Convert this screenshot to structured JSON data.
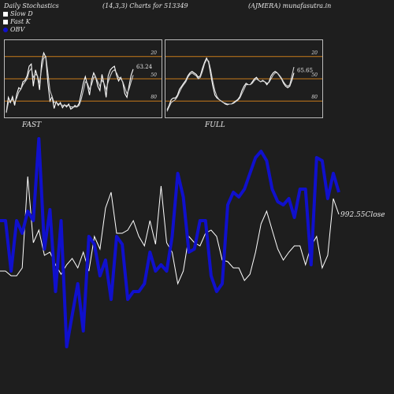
{
  "header": {
    "left": "Daily Stochastics",
    "middle": "(14,3,3) Charts for 513349",
    "right": "(AJMERA) munafasutra.in"
  },
  "legend": [
    {
      "label": "Slow  D",
      "color": "#ffffff"
    },
    {
      "label": "Fast K",
      "color": "#ffffff"
    },
    {
      "label": "OBV",
      "color": "#1010cc"
    }
  ],
  "colors": {
    "background": "#1e1e1e",
    "level_line": "#c87a1a",
    "obv": "#1010cc",
    "price": "#ffffff"
  },
  "chart_data": [
    {
      "type": "line",
      "panel_label": "FAST",
      "ylim": [
        0,
        100
      ],
      "levels": [
        20,
        50,
        80
      ],
      "tick_labels": [
        "80",
        "50",
        "20"
      ],
      "last_value_label": "63.24",
      "x": [
        1,
        2,
        3,
        4,
        5,
        6,
        7,
        8,
        9,
        10,
        11,
        12,
        13,
        14,
        15,
        16,
        17,
        18,
        19,
        20,
        21,
        22,
        23,
        24,
        25,
        26,
        27,
        28,
        29,
        30,
        31,
        32,
        33,
        34,
        35,
        36,
        37,
        38,
        39,
        40,
        41,
        42,
        43,
        44,
        45,
        46,
        47,
        48,
        49,
        50,
        51,
        52,
        53,
        54,
        55,
        56,
        57,
        58,
        59,
        60,
        61,
        62
      ],
      "series": [
        {
          "values": [
            5,
            25,
            18,
            26,
            14,
            29,
            38,
            36,
            46,
            48,
            54,
            67,
            70,
            40,
            62,
            53,
            35,
            73,
            85,
            79,
            44,
            20,
            26,
            10,
            19,
            14,
            18,
            11,
            15,
            12,
            16,
            9,
            11,
            14,
            12,
            17,
            30,
            44,
            53,
            42,
            28,
            48,
            58,
            52,
            40,
            34,
            56,
            43,
            25,
            54,
            62,
            65,
            67,
            55,
            47,
            52,
            45,
            30,
            25,
            40,
            55,
            63
          ]
        },
        {
          "values": [
            4,
            18,
            20,
            22,
            18,
            24,
            32,
            36,
            42,
            46,
            50,
            60,
            64,
            52,
            56,
            54,
            44,
            64,
            78,
            80,
            58,
            34,
            26,
            18,
            18,
            16,
            16,
            14,
            14,
            14,
            14,
            12,
            12,
            12,
            12,
            14,
            22,
            34,
            46,
            44,
            36,
            42,
            52,
            52,
            46,
            40,
            48,
            44,
            36,
            46,
            54,
            60,
            62,
            58,
            52,
            50,
            46,
            38,
            30,
            36,
            46,
            55
          ]
        }
      ]
    },
    {
      "type": "line",
      "panel_label": "FULL",
      "ylim": [
        0,
        100
      ],
      "levels": [
        20,
        50,
        80
      ],
      "tick_labels": [
        "80",
        "50",
        "20"
      ],
      "last_value_label": "65.65",
      "x": [
        1,
        2,
        3,
        4,
        5,
        6,
        7,
        8,
        9,
        10,
        11,
        12,
        13,
        14,
        15,
        16,
        17,
        18,
        19,
        20,
        21,
        22,
        23,
        24,
        25,
        26,
        27,
        28,
        29,
        30,
        31,
        32,
        33,
        34,
        35,
        36,
        37,
        38,
        39,
        40,
        41,
        42,
        43,
        44,
        45,
        46,
        47,
        48,
        49,
        50,
        51,
        52,
        53,
        54,
        55,
        56,
        57,
        58,
        59,
        60,
        61,
        62
      ],
      "series": [
        {
          "values": [
            8,
            14,
            22,
            24,
            24,
            28,
            36,
            40,
            44,
            48,
            54,
            58,
            60,
            58,
            56,
            52,
            54,
            64,
            72,
            78,
            72,
            56,
            40,
            28,
            24,
            22,
            20,
            18,
            16,
            15,
            16,
            16,
            18,
            20,
            22,
            26,
            34,
            40,
            44,
            42,
            42,
            46,
            50,
            52,
            48,
            46,
            48,
            46,
            42,
            46,
            54,
            58,
            60,
            58,
            54,
            50,
            44,
            40,
            38,
            40,
            48,
            58
          ]
        },
        {
          "values": [
            6,
            12,
            18,
            20,
            22,
            26,
            32,
            38,
            42,
            46,
            52,
            56,
            58,
            56,
            54,
            50,
            52,
            60,
            70,
            76,
            74,
            62,
            46,
            34,
            26,
            22,
            20,
            18,
            17,
            16,
            16,
            16,
            17,
            19,
            21,
            24,
            30,
            36,
            42,
            42,
            42,
            44,
            48,
            50,
            48,
            46,
            47,
            46,
            44,
            45,
            50,
            55,
            58,
            58,
            55,
            51,
            46,
            42,
            40,
            42,
            54,
            66
          ]
        }
      ]
    },
    {
      "type": "line",
      "panel_label": "",
      "last_value_label": "992.55",
      "last_value_suffix": "Close",
      "x": [
        1,
        2,
        3,
        4,
        5,
        6,
        7,
        8,
        9,
        10,
        11,
        12,
        13,
        14,
        15,
        16,
        17,
        18,
        19,
        20,
        21,
        22,
        23,
        24,
        25,
        26,
        27,
        28,
        29,
        30,
        31,
        32,
        33,
        34,
        35,
        36,
        37,
        38,
        39,
        40,
        41,
        42,
        43,
        44,
        45,
        46,
        47,
        48,
        49,
        50,
        51,
        52,
        53,
        54,
        55,
        56,
        57,
        58,
        59,
        60,
        61,
        62
      ],
      "series": [
        {
          "name": "OBV",
          "values": [
            90,
            90,
            58,
            90,
            82,
            96,
            90,
            142,
            72,
            97,
            45,
            90,
            10,
            30,
            50,
            20,
            80,
            75,
            55,
            65,
            40,
            80,
            75,
            40,
            45,
            45,
            50,
            70,
            58,
            62,
            58,
            80,
            120,
            105,
            70,
            72,
            90,
            90,
            55,
            45,
            50,
            100,
            108,
            105,
            110,
            120,
            130,
            134,
            128,
            110,
            102,
            100,
            104,
            92,
            110,
            110,
            62,
            130,
            128,
            104,
            120,
            108
          ]
        },
        {
          "name": "Close",
          "values": [
            58,
            58,
            55,
            55,
            60,
            118,
            76,
            84,
            68,
            70,
            62,
            56,
            62,
            66,
            60,
            70,
            58,
            80,
            72,
            98,
            108,
            82,
            82,
            84,
            90,
            80,
            74,
            90,
            75,
            112,
            76,
            70,
            50,
            58,
            80,
            76,
            74,
            82,
            84,
            80,
            65,
            64,
            60,
            60,
            52,
            56,
            70,
            88,
            96,
            84,
            72,
            65,
            70,
            74,
            74,
            62,
            74,
            80,
            60,
            68,
            104,
            94
          ]
        }
      ]
    }
  ]
}
